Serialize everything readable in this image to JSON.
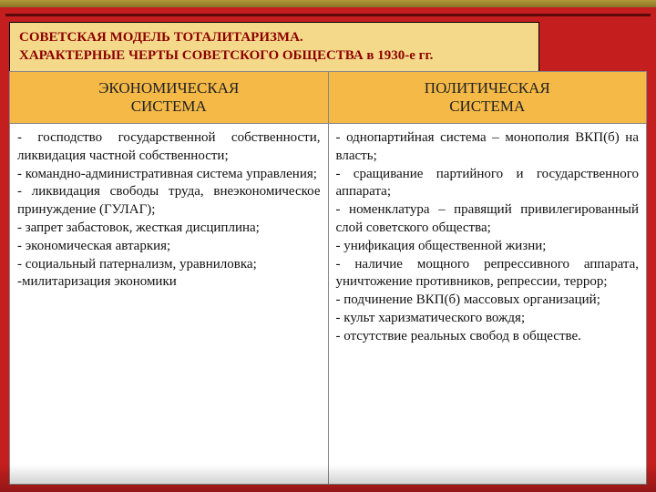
{
  "title": {
    "line1": "СОВЕТСКАЯ  МОДЕЛЬ  ТОТАЛИТАРИЗМА.",
    "line2": "ХАРАКТЕРНЫЕ  ЧЕРТЫ  СОВЕТСКОГО  ОБЩЕСТВА    в  1930-е гг."
  },
  "table": {
    "headers": {
      "col1_line1": "ЭКОНОМИЧЕСКАЯ",
      "col1_line2": "СИСТЕМА",
      "col2_line1": "ПОЛИТИЧЕСКАЯ",
      "col2_line2": "СИСТЕМА"
    },
    "cells": {
      "econ": "- господство государственной собственности, ликвидация частной собственности;\n- командно-административная система управления;\n- ликвидация свободы труда, внеэкономическое принуждение (ГУЛАГ);\n- запрет забастовок, жесткая дисциплина;\n- экономическая автаркия;\n- социальный патернализм, уравниловка;\n-милитаризация экономики",
      "polit": "- однопартийная система – монополия ВКП(б) на власть;\n- сращивание партийного и государственного аппарата;\n- номенклатура – правящий привилегированный слой советского общества;\n- унификация общественной жизни;\n- наличие мощного репрессивного аппарата, уничтожение противников, репрессии, террор;\n- подчинение ВКП(б) массовых организаций;\n- культ харизматического вождя;\n- отсутствие реальных свобод в обществе."
    }
  },
  "colors": {
    "title_bg": "#f5d98a",
    "title_text": "#8b0000",
    "header_bg": "#f5b947",
    "page_bg": "#c41e1e",
    "cell_text": "#111111",
    "border": "#888888"
  }
}
